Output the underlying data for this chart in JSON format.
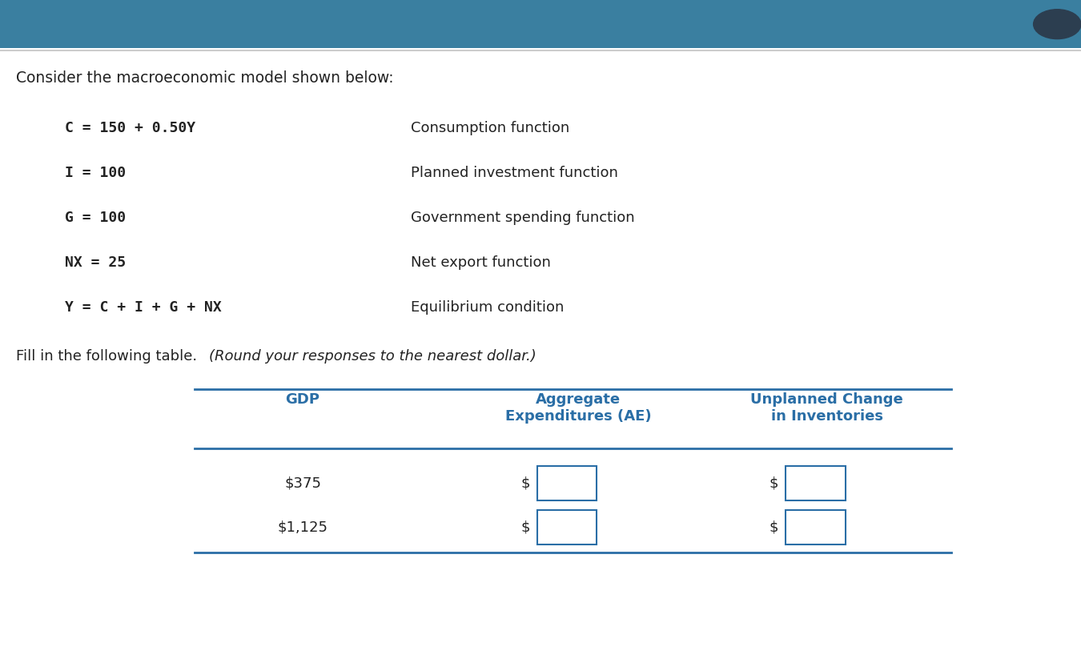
{
  "header_bar_color": "#3a7fa0",
  "header_bar_height": 0.072,
  "content_bg": "#ffffff",
  "title_text": "Consider the macroeconomic model shown below:",
  "title_fontsize": 13.5,
  "title_color": "#222222",
  "equations": [
    "C = 150 + 0.50Y",
    "I = 100",
    "G = 100",
    "NX = 25",
    "Y = C + I + G + NX"
  ],
  "descriptions": [
    "Consumption function",
    "Planned investment function",
    "Government spending function",
    "Net export function",
    "Equilibrium condition"
  ],
  "eq_fontsize": 13,
  "eq_color": "#222222",
  "desc_fontsize": 13,
  "desc_color": "#222222",
  "fill_text": "Fill in the following table. ",
  "fill_italic": "(Round your responses to the nearest dollar.)",
  "fill_fontsize": 13,
  "fill_color": "#222222",
  "table_header_color": "#2a6ea6",
  "table_header_fontsize": 13,
  "table_col1_header": "GDP",
  "table_col2_header": "Aggregate\nExpenditures (AE)",
  "table_col3_header": "Unplanned Change\nin Inventories",
  "table_gdp_values": [
    "$375",
    "$1,125"
  ],
  "table_input_prefix": "$",
  "table_line_color": "#2a6ea6",
  "input_box_color": "#2a6ea6",
  "input_box_fill": "#ffffff"
}
